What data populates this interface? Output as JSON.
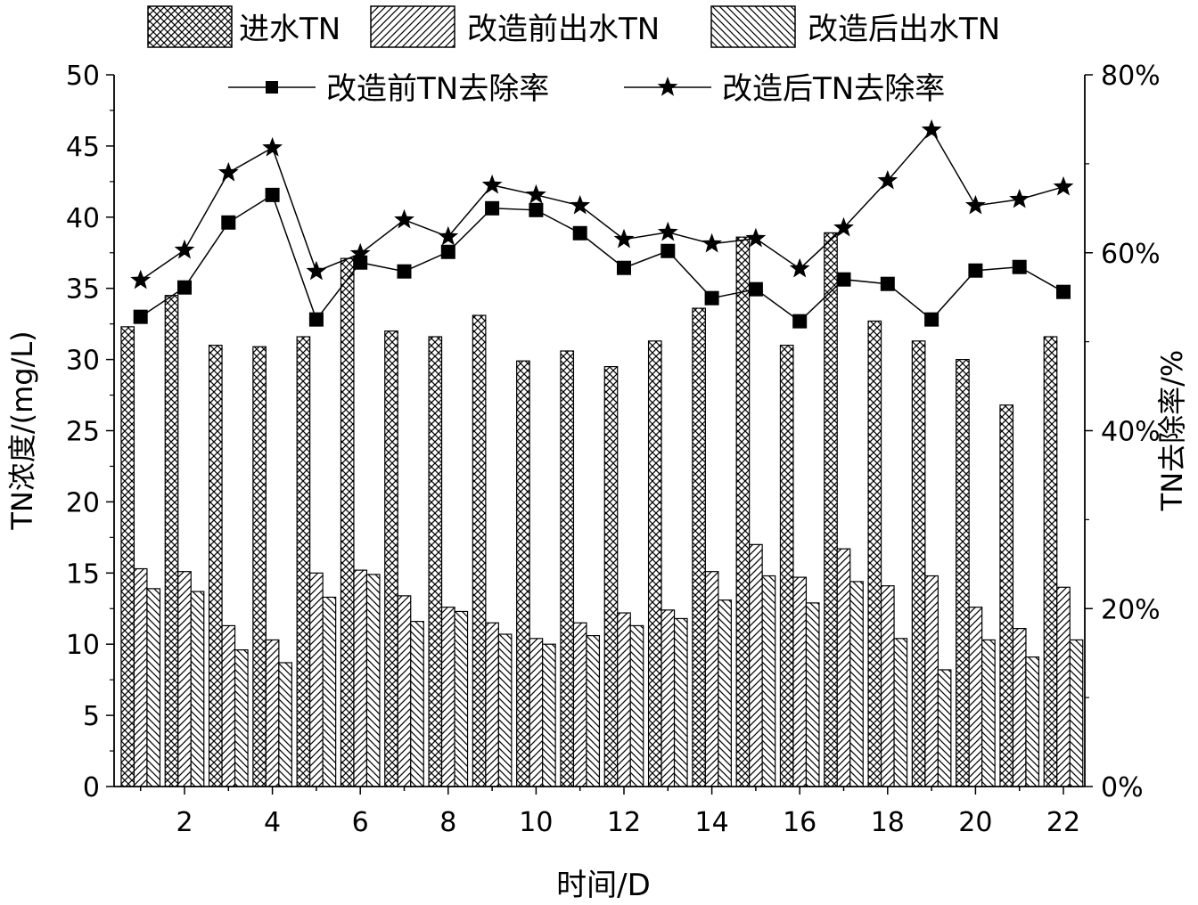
{
  "chart_data": {
    "type": "bar",
    "x": [
      1,
      2,
      3,
      4,
      5,
      6,
      7,
      8,
      9,
      10,
      11,
      12,
      13,
      14,
      15,
      16,
      17,
      18,
      19,
      20,
      21,
      22
    ],
    "xticks": [
      2,
      4,
      6,
      8,
      10,
      12,
      14,
      16,
      18,
      20,
      22
    ],
    "xlabel": "时间/D",
    "ylabel": "TN浓度/(mg/L)",
    "ylabel_right": "TN去除率/%",
    "ylim": [
      0,
      50
    ],
    "ylim_right": [
      0,
      80
    ],
    "yticks": [
      0,
      5,
      10,
      15,
      20,
      25,
      30,
      35,
      40,
      45,
      50
    ],
    "yticks_right": [
      0,
      20,
      40,
      60,
      80
    ],
    "yticks_right_labels": [
      "0%",
      "20%",
      "40%",
      "60%",
      "80%"
    ],
    "bar_series": [
      {
        "name": "进水TN",
        "pattern": "crosshatch",
        "values": [
          32.3,
          34.5,
          31.0,
          30.9,
          31.6,
          37.1,
          32.0,
          31.6,
          33.1,
          29.9,
          30.6,
          29.5,
          31.3,
          33.6,
          38.6,
          31.0,
          38.9,
          32.7,
          31.3,
          30.0,
          26.8,
          31.6
        ]
      },
      {
        "name": "改造前出水TN",
        "pattern": "forward-diagonal",
        "values": [
          15.3,
          15.1,
          11.3,
          10.3,
          15.0,
          15.2,
          13.4,
          12.6,
          11.5,
          10.4,
          11.5,
          12.2,
          12.4,
          15.1,
          17.0,
          14.7,
          16.7,
          14.1,
          14.8,
          12.6,
          11.1,
          14.0
        ]
      },
      {
        "name": "改造后出水TN",
        "pattern": "back-diagonal",
        "values": [
          13.9,
          13.7,
          9.6,
          8.7,
          13.3,
          14.9,
          11.6,
          12.3,
          10.7,
          10.0,
          10.6,
          11.3,
          11.8,
          13.1,
          14.8,
          12.9,
          14.4,
          10.4,
          8.2,
          10.3,
          9.1,
          10.3
        ]
      }
    ],
    "line_series": [
      {
        "name": "改造前TN去除率",
        "marker": "square",
        "values": [
          52.8,
          56.1,
          63.4,
          66.5,
          52.5,
          58.9,
          57.9,
          60.1,
          65.0,
          64.8,
          62.2,
          58.3,
          60.2,
          54.9,
          55.9,
          52.3,
          57.0,
          56.5,
          52.5,
          58.0,
          58.4,
          55.6
        ]
      },
      {
        "name": "改造后TN去除率",
        "marker": "star",
        "values": [
          56.9,
          60.3,
          69.0,
          71.8,
          57.9,
          59.9,
          63.7,
          61.8,
          67.6,
          66.5,
          65.3,
          61.5,
          62.3,
          61.0,
          61.6,
          58.2,
          62.8,
          68.1,
          73.8,
          65.3,
          66.0,
          67.4
        ]
      }
    ]
  }
}
